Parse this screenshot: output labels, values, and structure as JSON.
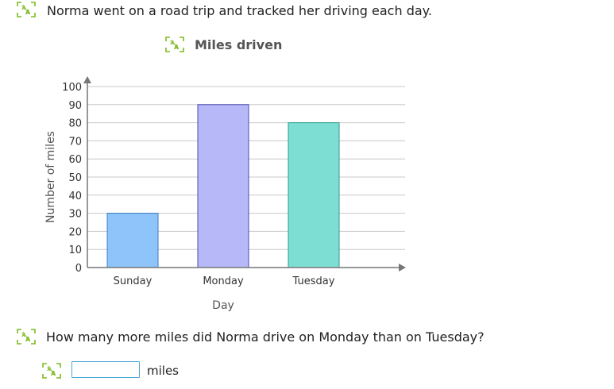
{
  "prompt": {
    "text": "Norma went on a road trip and tracked her driving each day."
  },
  "question": {
    "text": "How many more miles did Norma drive on Monday than on Tuesday?"
  },
  "answer": {
    "value": "",
    "unit": "miles"
  },
  "icons": {
    "speaker": "text-to-speech-icon"
  },
  "colors": {
    "accent": "#7dbb21",
    "input_border": "#4fa8d6"
  },
  "chart_data": {
    "type": "bar",
    "title": "Miles driven",
    "xlabel": "Day",
    "ylabel": "Number of miles",
    "categories": [
      "Sunday",
      "Monday",
      "Tuesday"
    ],
    "values": [
      30,
      90,
      80
    ],
    "ylim": [
      0,
      100
    ],
    "yticks": [
      0,
      10,
      20,
      30,
      40,
      50,
      60,
      70,
      80,
      90,
      100
    ],
    "grid": true,
    "bar_colors": [
      "#8ec4fa",
      "#b6b8f8",
      "#7ddfd3"
    ],
    "bar_border_colors": [
      "#3b7bc4",
      "#4b4ab3",
      "#2a9a8c"
    ]
  }
}
